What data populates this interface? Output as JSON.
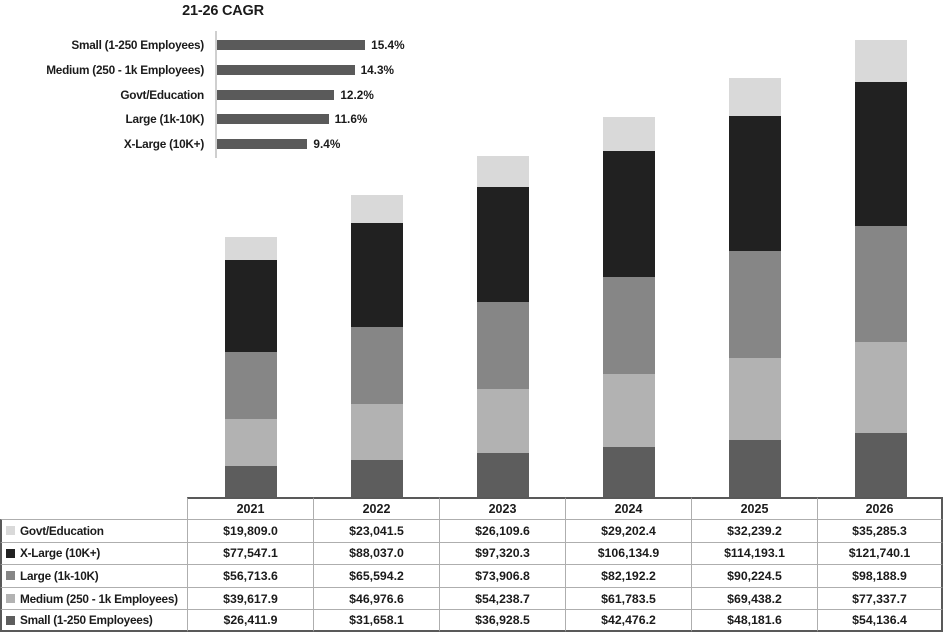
{
  "chart_data": [
    {
      "type": "bar",
      "orientation": "horizontal",
      "title": "21-26 CAGR",
      "categories": [
        "Small (1-250 Employees)",
        "Medium (250 - 1k Employees)",
        "Govt/Education",
        "Large (1k-10K)",
        "X-Large (10K+)"
      ],
      "values": [
        15.4,
        14.3,
        12.2,
        11.6,
        9.4
      ],
      "value_labels": [
        "15.4%",
        "14.3%",
        "12.2%",
        "11.6%",
        "9.4%"
      ],
      "xlim": [
        0,
        16
      ],
      "grid": false,
      "bar_color": "#5a5a5a",
      "axis_color": "#cfcfcf"
    },
    {
      "type": "bar",
      "subtype": "stacked",
      "categories": [
        "2021",
        "2022",
        "2023",
        "2024",
        "2025",
        "2026"
      ],
      "stack_order": "bottom-to-top",
      "grid": false,
      "series": [
        {
          "name": "Small (1-250 Employees)",
          "color": "#5d5d5d",
          "values": [
            26411.9,
            31658.1,
            36928.5,
            42476.2,
            48181.6,
            54136.4
          ]
        },
        {
          "name": "Medium (250 - 1k Employees)",
          "color": "#b2b2b2",
          "values": [
            39617.9,
            46976.6,
            54238.7,
            61783.5,
            69438.2,
            77337.7
          ]
        },
        {
          "name": "Large (1k-10K)",
          "color": "#868686",
          "values": [
            56713.6,
            65594.2,
            73906.8,
            82192.2,
            90224.5,
            98188.9
          ]
        },
        {
          "name": "X-Large (10K+)",
          "color": "#212121",
          "values": [
            77547.1,
            88037.0,
            97320.3,
            106134.9,
            114193.1,
            121740.1
          ]
        },
        {
          "name": "Govt/Education",
          "color": "#d9d9d9",
          "values": [
            19809.0,
            23041.5,
            26109.6,
            29202.4,
            32239.2,
            35285.3
          ]
        }
      ]
    },
    {
      "type": "table",
      "columns": [
        "",
        "2021",
        "2022",
        "2023",
        "2024",
        "2025",
        "2026"
      ],
      "rows": [
        {
          "label": "Govt/Education",
          "swatch_color": "#d9d9d9",
          "values": [
            "$19,809.0",
            "$23,041.5",
            "$26,109.6",
            "$29,202.4",
            "$32,239.2",
            "$35,285.3"
          ]
        },
        {
          "label": "X-Large (10K+)",
          "swatch_color": "#212121",
          "values": [
            "$77,547.1",
            "$88,037.0",
            "$97,320.3",
            "$106,134.9",
            "$114,193.1",
            "$121,740.1"
          ]
        },
        {
          "label": "Large (1k-10K)",
          "swatch_color": "#868686",
          "values": [
            "$56,713.6",
            "$65,594.2",
            "$73,906.8",
            "$82,192.2",
            "$90,224.5",
            "$98,188.9"
          ]
        },
        {
          "label": "Medium (250 - 1k Employees)",
          "swatch_color": "#b2b2b2",
          "values": [
            "$39,617.9",
            "$46,976.6",
            "$54,238.7",
            "$61,783.5",
            "$69,438.2",
            "$77,337.7"
          ]
        },
        {
          "label": "Small (1-250 Employees)",
          "swatch_color": "#5d5d5d",
          "values": [
            "$26,411.9",
            "$31,658.1",
            "$36,928.5",
            "$42,476.2",
            "$48,181.6",
            "$54,136.4"
          ]
        }
      ]
    }
  ]
}
